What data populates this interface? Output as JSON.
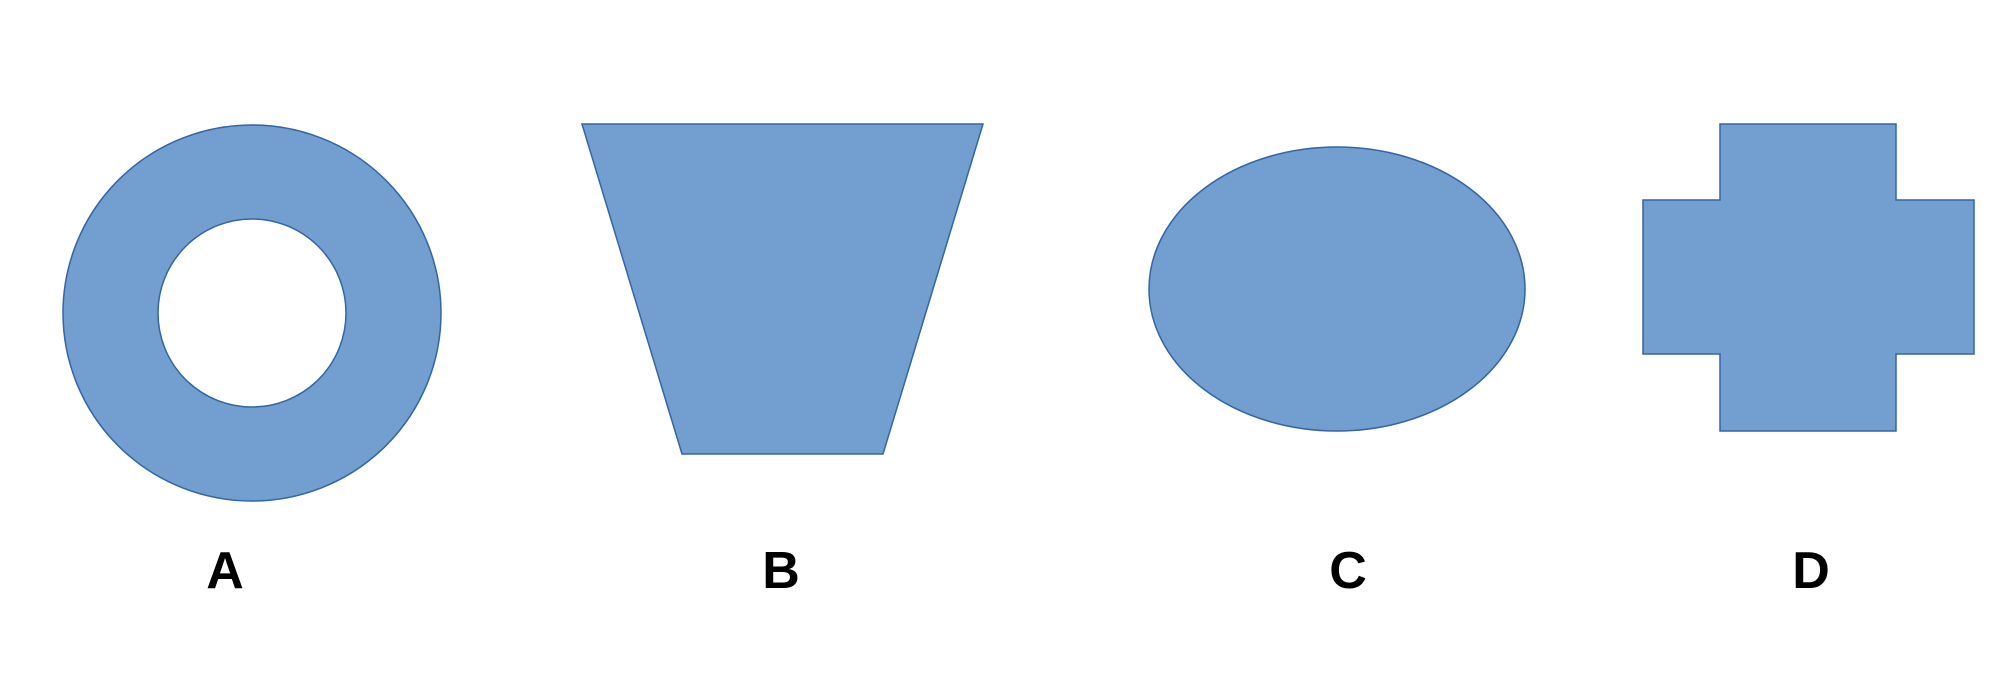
{
  "colors": {
    "shape_fill": "#729fcf",
    "shape_outline": "#3465a4",
    "label_text": "#000000",
    "background": "#ffffff"
  },
  "options": [
    {
      "id": "A",
      "label": "A",
      "shape": "ring"
    },
    {
      "id": "B",
      "label": "B",
      "shape": "inverted-trapezoid"
    },
    {
      "id": "C",
      "label": "C",
      "shape": "ellipse"
    },
    {
      "id": "D",
      "label": "D",
      "shape": "plus-cross"
    }
  ]
}
